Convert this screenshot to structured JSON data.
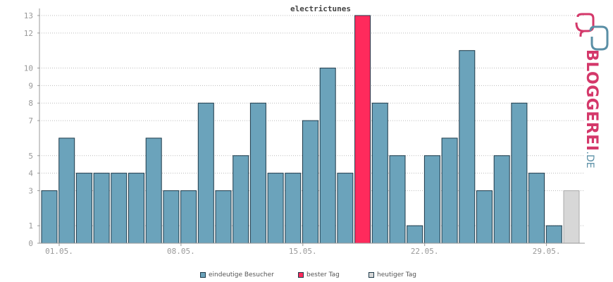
{
  "chart_data": {
    "type": "bar",
    "title": "electrictunes",
    "y_ticks": [
      "0",
      "1",
      "3",
      "4",
      "5",
      "7",
      "8",
      "9",
      "10",
      "12",
      "13"
    ],
    "ylim": [
      0,
      13
    ],
    "x_tick_labels": [
      {
        "index": 0,
        "label": "01.05."
      },
      {
        "index": 7,
        "label": "08.05."
      },
      {
        "index": 14,
        "label": "15.05."
      },
      {
        "index": 21,
        "label": "22.05."
      },
      {
        "index": 28,
        "label": "29.05."
      }
    ],
    "values": [
      3,
      6,
      4,
      4,
      4,
      4,
      6,
      3,
      3,
      8,
      3,
      5,
      8,
      4,
      4,
      7,
      10,
      4,
      13,
      8,
      5,
      1,
      5,
      6,
      11,
      3,
      5,
      8,
      4,
      1,
      3
    ],
    "kinds": [
      "n",
      "n",
      "n",
      "n",
      "n",
      "n",
      "n",
      "n",
      "n",
      "n",
      "n",
      "n",
      "n",
      "n",
      "n",
      "n",
      "n",
      "n",
      "best",
      "n",
      "n",
      "n",
      "n",
      "n",
      "n",
      "n",
      "n",
      "n",
      "n",
      "n",
      "today"
    ],
    "grid": true,
    "legend": [
      {
        "label": "eindeutige Besucher",
        "color": "#6ba3bb"
      },
      {
        "label": "bester Tag",
        "color": "#ff2a5c"
      },
      {
        "label": "heutiger Tag",
        "color": "#d7d7d7"
      }
    ]
  },
  "logo": {
    "name": "BLOGGEREI",
    "suffix": ".DE"
  }
}
